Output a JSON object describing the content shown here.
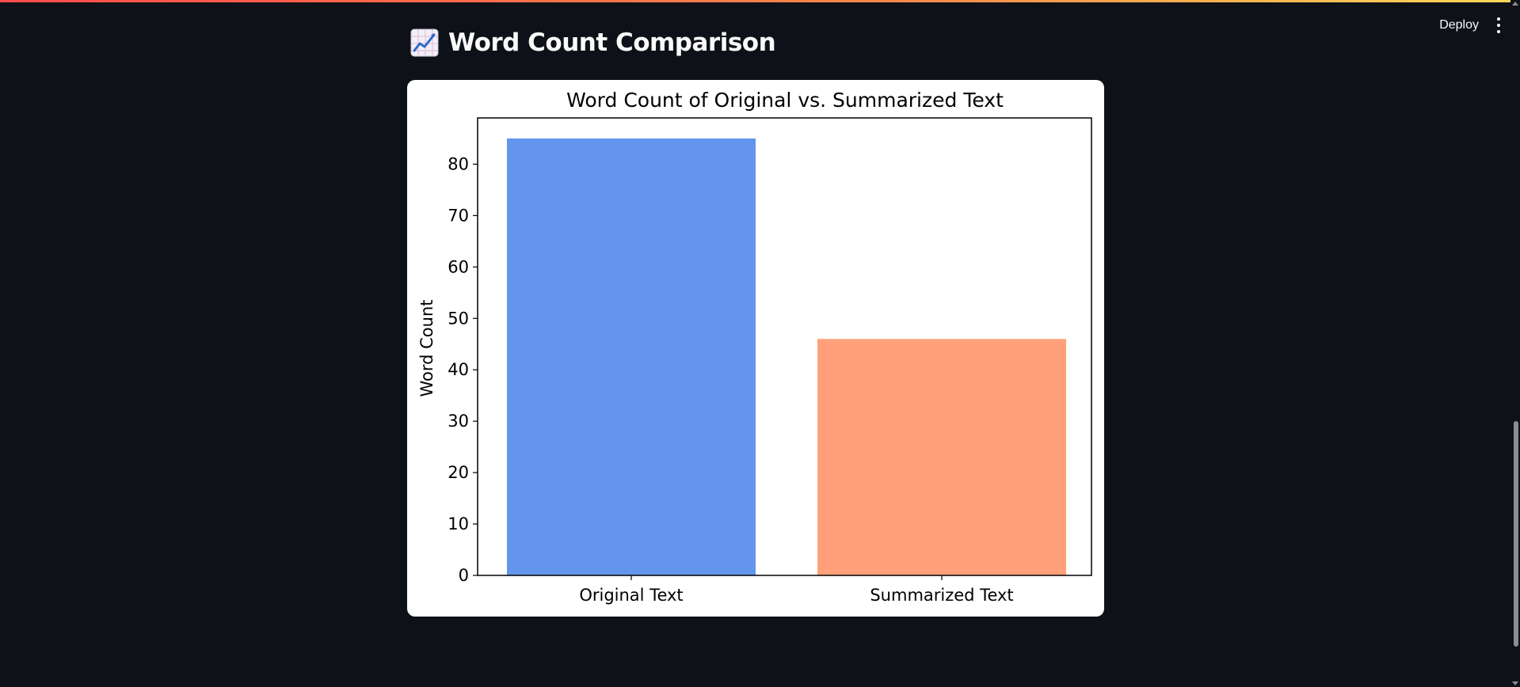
{
  "header": {
    "deploy_label": "Deploy"
  },
  "page": {
    "title_icon": "chart-increasing-icon",
    "title": "Word Count Comparison"
  },
  "chart_data": {
    "type": "bar",
    "title": "Word Count of Original vs. Summarized Text",
    "xlabel": "",
    "ylabel": "Word Count",
    "categories": [
      "Original Text",
      "Summarized Text"
    ],
    "values": [
      85,
      46
    ],
    "colors": [
      "#6495ed",
      "#ffa07a"
    ],
    "ylim": [
      0,
      89
    ],
    "yticks": [
      0,
      10,
      20,
      30,
      40,
      50,
      60,
      70,
      80
    ],
    "grid": false,
    "legend": false
  }
}
